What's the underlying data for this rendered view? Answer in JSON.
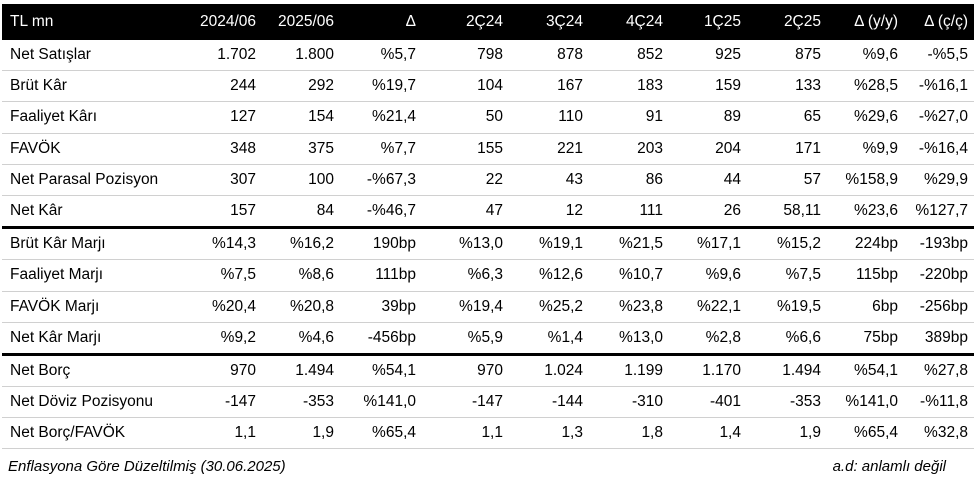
{
  "table": {
    "headers": [
      "TL mn",
      "2024/06",
      "2025/06",
      "Δ",
      "2Ç24",
      "3Ç24",
      "4Ç24",
      "1Ç25",
      "2Ç25",
      "Δ (y/y)",
      "Δ (ç/ç)"
    ],
    "groups": [
      {
        "rows": [
          {
            "label": "Net Satışlar",
            "values": [
              "1.702",
              "1.800",
              "%5,7",
              "798",
              "878",
              "852",
              "925",
              "875",
              "%9,6",
              "-%5,5"
            ]
          },
          {
            "label": "Brüt Kâr",
            "values": [
              "244",
              "292",
              "%19,7",
              "104",
              "167",
              "183",
              "159",
              "133",
              "%28,5",
              "-%16,1"
            ]
          },
          {
            "label": "Faaliyet Kârı",
            "values": [
              "127",
              "154",
              "%21,4",
              "50",
              "110",
              "91",
              "89",
              "65",
              "%29,6",
              "-%27,0"
            ]
          },
          {
            "label": "FAVÖK",
            "values": [
              "348",
              "375",
              "%7,7",
              "155",
              "221",
              "203",
              "204",
              "171",
              "%9,9",
              "-%16,4"
            ]
          },
          {
            "label": "Net Parasal Pozisyon",
            "values": [
              "307",
              "100",
              "-%67,3",
              "22",
              "43",
              "86",
              "44",
              "57",
              "%158,9",
              "%29,9"
            ]
          },
          {
            "label": "Net Kâr",
            "values": [
              "157",
              "84",
              "-%46,7",
              "47",
              "12",
              "111",
              "26",
              "58,11",
              "%23,6",
              "%127,7"
            ]
          }
        ]
      },
      {
        "rows": [
          {
            "label": "Brüt Kâr Marjı",
            "values": [
              "%14,3",
              "%16,2",
              "190bp",
              "%13,0",
              "%19,1",
              "%21,5",
              "%17,1",
              "%15,2",
              "224bp",
              "-193bp"
            ]
          },
          {
            "label": "Faaliyet Marjı",
            "values": [
              "%7,5",
              "%8,6",
              "111bp",
              "%6,3",
              "%12,6",
              "%10,7",
              "%9,6",
              "%7,5",
              "115bp",
              "-220bp"
            ]
          },
          {
            "label": "FAVÖK Marjı",
            "values": [
              "%20,4",
              "%20,8",
              "39bp",
              "%19,4",
              "%25,2",
              "%23,8",
              "%22,1",
              "%19,5",
              "6bp",
              "-256bp"
            ]
          },
          {
            "label": "Net Kâr Marjı",
            "values": [
              "%9,2",
              "%4,6",
              "-456bp",
              "%5,9",
              "%1,4",
              "%13,0",
              "%2,8",
              "%6,6",
              "75bp",
              "389bp"
            ]
          }
        ]
      },
      {
        "rows": [
          {
            "label": "Net Borç",
            "values": [
              "970",
              "1.494",
              "%54,1",
              "970",
              "1.024",
              "1.199",
              "1.170",
              "1.494",
              "%54,1",
              "%27,8"
            ]
          },
          {
            "label": "Net Döviz Pozisyonu",
            "values": [
              "-147",
              "-353",
              "%141,0",
              "-147",
              "-144",
              "-310",
              "-401",
              "-353",
              "%141,0",
              "-%11,8"
            ]
          },
          {
            "label": "Net Borç/FAVÖK",
            "values": [
              "1,1",
              "1,9",
              "%65,4",
              "1,1",
              "1,3",
              "1,8",
              "1,4",
              "1,9",
              "%65,4",
              "%32,8"
            ]
          }
        ]
      }
    ]
  },
  "footnote": {
    "left": "Enflasyona Göre Düzeltilmiş (30.06.2025)",
    "right": "a.d: anlamlı değil"
  }
}
